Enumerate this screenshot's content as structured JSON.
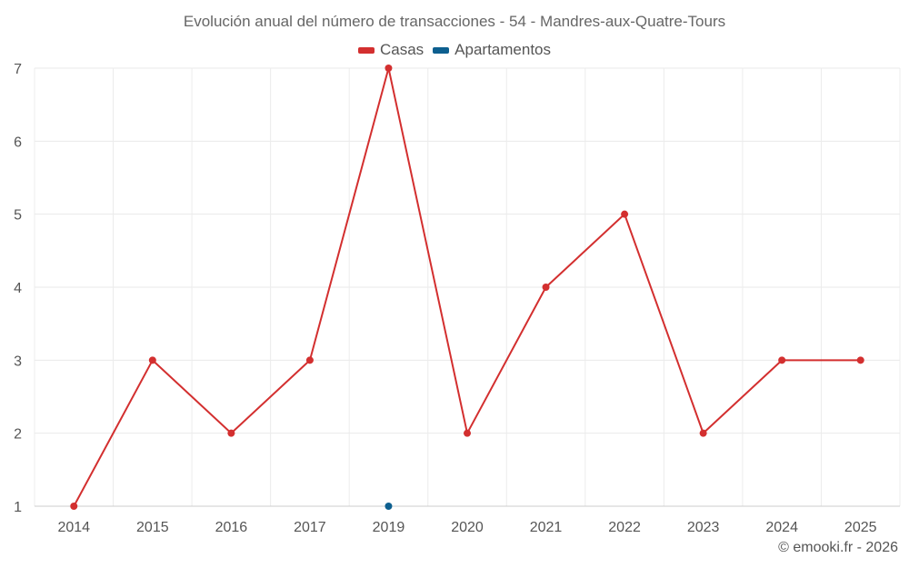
{
  "chart_data": {
    "type": "line",
    "title": "Evolución anual del número de transacciones - 54 - Mandres-aux-Quatre-Tours",
    "categories": [
      "2014",
      "2015",
      "2016",
      "2017",
      "2019",
      "2020",
      "2021",
      "2022",
      "2023",
      "2024",
      "2025"
    ],
    "series": [
      {
        "name": "Casas",
        "color": "#d32f2f",
        "values": [
          1,
          3,
          2,
          3,
          7,
          2,
          4,
          5,
          2,
          3,
          3
        ]
      },
      {
        "name": "Apartamentos",
        "color": "#0d5f8f",
        "values": [
          null,
          null,
          null,
          null,
          1,
          null,
          null,
          null,
          null,
          null,
          null
        ]
      }
    ],
    "yticks": [
      "1",
      "2",
      "3",
      "4",
      "5",
      "6",
      "7"
    ],
    "ylim": [
      1,
      7
    ],
    "xlabel": "",
    "ylabel": "",
    "grid": true,
    "legend_position": "top-center"
  },
  "footer": {
    "copyright": "© emooki.fr - 2026"
  }
}
